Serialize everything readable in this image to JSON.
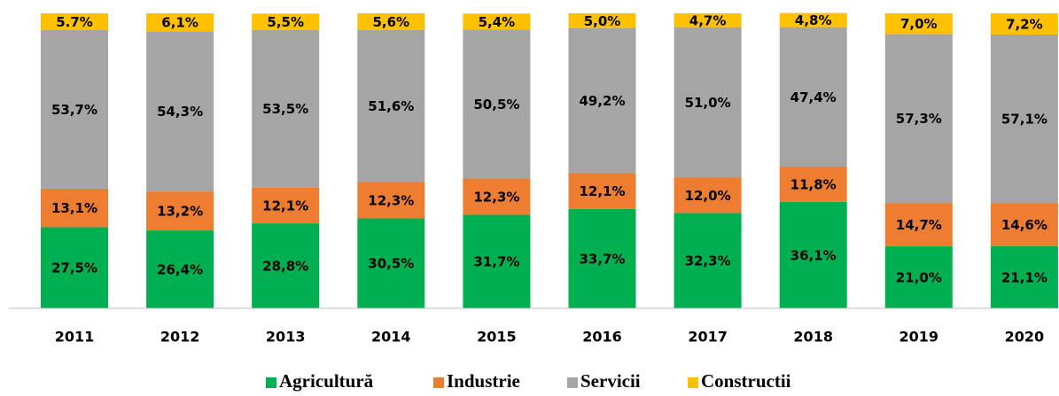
{
  "chart_data": {
    "type": "stacked_bar",
    "categories": [
      "2011",
      "2012",
      "2013",
      "2014",
      "2015",
      "2016",
      "2017",
      "2018",
      "2019",
      "2020"
    ],
    "series": [
      {
        "name": "Agricultură",
        "color": "#00b050",
        "values": [
          27.5,
          26.4,
          28.8,
          30.5,
          31.7,
          33.7,
          32.3,
          36.1,
          21.0,
          21.1
        ],
        "value_labels": [
          "27,5%",
          "26,4%",
          "28,8%",
          "30,5%",
          "31,7%",
          "33,7%",
          "32,3%",
          "36,1%",
          "21,0%",
          "21,1%"
        ]
      },
      {
        "name": "Industrie",
        "color": "#ed7d31",
        "values": [
          13.1,
          13.2,
          12.1,
          12.3,
          12.3,
          12.1,
          12.0,
          11.8,
          14.7,
          14.6
        ],
        "value_labels": [
          "13,1%",
          "13,2%",
          "12,1%",
          "12,3%",
          "12,3%",
          "12,1%",
          "12,0%",
          "11,8%",
          "14,7%",
          "14,6%"
        ]
      },
      {
        "name": "Servicii",
        "color": "#a5a5a5",
        "values": [
          53.7,
          54.3,
          53.5,
          51.6,
          50.5,
          49.2,
          51.0,
          47.4,
          57.3,
          57.1
        ],
        "value_labels": [
          "53,7%",
          "54,3%",
          "53,5%",
          "51,6%",
          "50,5%",
          "49,2%",
          "51,0%",
          "47,4%",
          "57,3%",
          "57,1%"
        ]
      },
      {
        "name": "Constructii",
        "color": "#ffc000",
        "values": [
          5.7,
          6.1,
          5.5,
          5.6,
          5.4,
          5.0,
          4.7,
          4.8,
          7.0,
          7.2
        ],
        "value_labels": [
          "5.7%",
          "6,1%",
          "5,5%",
          "5,6%",
          "5,4%",
          "5,0%",
          "4,7%",
          "4,8%",
          "7,0%",
          "7,2%"
        ]
      }
    ],
    "ylim": [
      0,
      100
    ],
    "legend": "bottom"
  }
}
